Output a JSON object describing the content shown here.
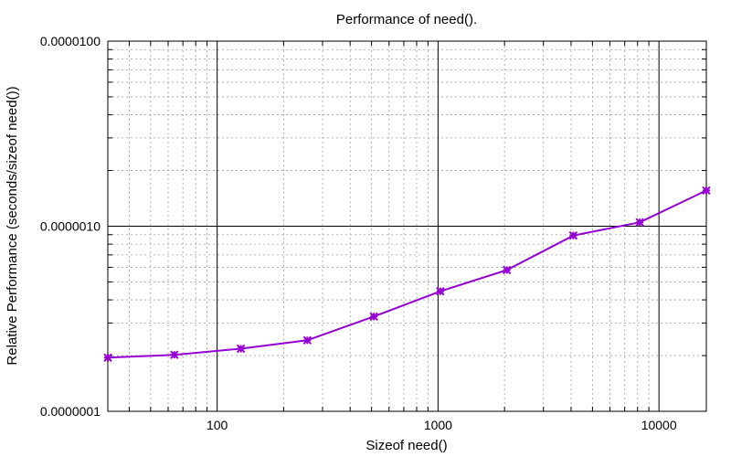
{
  "chart_data": {
    "type": "line",
    "title": "Performance of need().",
    "xlabel": "Sizeof need()",
    "ylabel": "Relative Performance (seconds/sizeof need())",
    "x_scale": "log",
    "y_scale": "log",
    "xlim": [
      32,
      16384
    ],
    "ylim": [
      1e-07,
      1e-05
    ],
    "grid": true,
    "x_ticks": [
      {
        "value": 100,
        "label": "100"
      },
      {
        "value": 1000,
        "label": "1000"
      },
      {
        "value": 10000,
        "label": "10000"
      }
    ],
    "y_ticks": [
      {
        "value": 1e-07,
        "label": "0.0000001"
      },
      {
        "value": 1e-06,
        "label": "0.0000010"
      },
      {
        "value": 1e-05,
        "label": "0.0000100"
      }
    ],
    "series": [
      {
        "color": "#9400d3",
        "marker": "star",
        "x": [
          32,
          64,
          128,
          256,
          512,
          1024,
          2048,
          4096,
          8192,
          16384
        ],
        "y": [
          1.95e-07,
          2.02e-07,
          2.18e-07,
          2.42e-07,
          3.25e-07,
          4.45e-07,
          5.8e-07,
          8.9e-07,
          1.05e-06,
          1.56e-06
        ]
      }
    ]
  }
}
